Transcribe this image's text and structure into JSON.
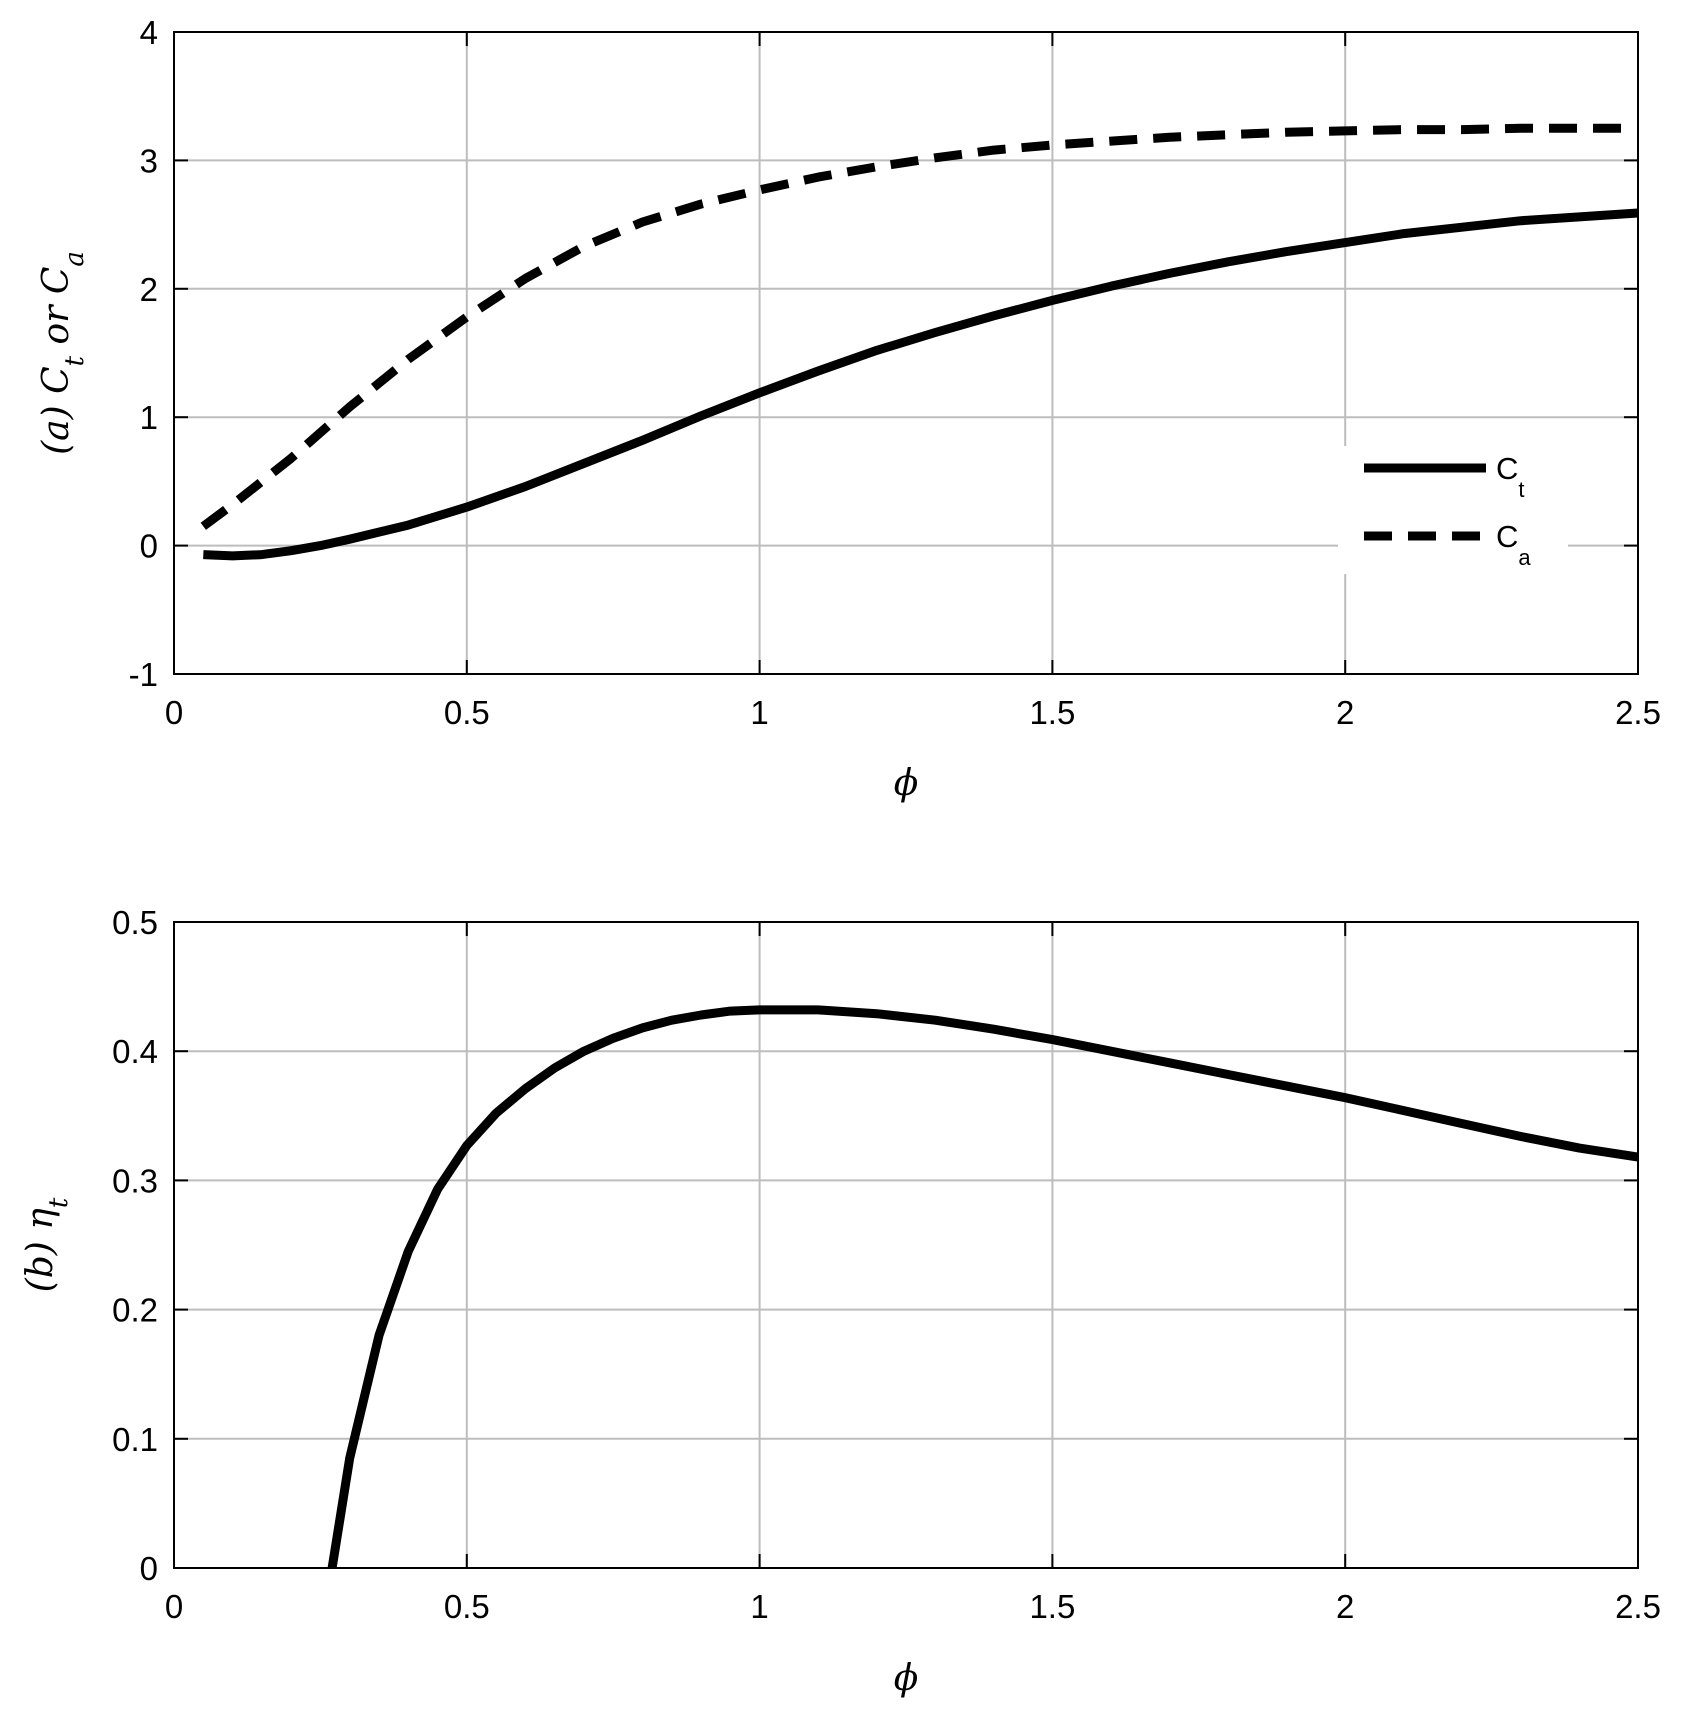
{
  "chart_data": [
    {
      "type": "line",
      "xlabel": "ϕ",
      "ylabel": {
        "prefix": "(a) ",
        "parts": [
          {
            "text": "C",
            "sub": "t"
          },
          {
            "text": " or "
          },
          {
            "text": "C",
            "sub": "a"
          }
        ]
      },
      "xlim": [
        0,
        2.5
      ],
      "ylim": [
        -1,
        4
      ],
      "xticks": [
        0,
        0.5,
        1,
        1.5,
        2,
        2.5
      ],
      "xtick_labels": [
        "0",
        "0.5",
        "1",
        "1.5",
        "2",
        "2.5"
      ],
      "yticks": [
        -1,
        0,
        1,
        2,
        3,
        4
      ],
      "ytick_labels": [
        "-1",
        "0",
        "1",
        "2",
        "3",
        "4"
      ],
      "grid": true,
      "legend": {
        "placement": "right",
        "entries": [
          {
            "text": "C",
            "sub": "t",
            "style": "solid"
          },
          {
            "text": "C",
            "sub": "a",
            "style": "dashed"
          }
        ]
      },
      "series": [
        {
          "style": "solid",
          "color": "#000000",
          "x": [
            0.05,
            0.1,
            0.15,
            0.2,
            0.25,
            0.3,
            0.4,
            0.5,
            0.6,
            0.7,
            0.8,
            0.9,
            1.0,
            1.1,
            1.2,
            1.3,
            1.4,
            1.5,
            1.6,
            1.7,
            1.8,
            1.9,
            2.0,
            2.1,
            2.2,
            2.3,
            2.4,
            2.5
          ],
          "y": [
            -0.07,
            -0.08,
            -0.07,
            -0.04,
            0.0,
            0.05,
            0.16,
            0.3,
            0.46,
            0.64,
            0.82,
            1.01,
            1.19,
            1.36,
            1.52,
            1.66,
            1.79,
            1.91,
            2.02,
            2.12,
            2.21,
            2.29,
            2.36,
            2.43,
            2.48,
            2.53,
            2.56,
            2.59
          ]
        },
        {
          "style": "dashed",
          "color": "#000000",
          "x": [
            0.05,
            0.1,
            0.2,
            0.3,
            0.4,
            0.5,
            0.6,
            0.7,
            0.8,
            0.9,
            1.0,
            1.1,
            1.2,
            1.3,
            1.4,
            1.5,
            1.6,
            1.7,
            1.8,
            1.9,
            2.0,
            2.1,
            2.2,
            2.3,
            2.4,
            2.5
          ],
          "y": [
            0.15,
            0.32,
            0.68,
            1.08,
            1.45,
            1.78,
            2.08,
            2.33,
            2.52,
            2.66,
            2.77,
            2.87,
            2.95,
            3.02,
            3.08,
            3.12,
            3.15,
            3.18,
            3.2,
            3.22,
            3.23,
            3.24,
            3.24,
            3.25,
            3.25,
            3.25
          ]
        }
      ]
    },
    {
      "type": "line",
      "xlabel": "ϕ",
      "ylabel": {
        "prefix": "(b) ",
        "parts": [
          {
            "text": "η",
            "sub": "t"
          }
        ]
      },
      "xlim": [
        0,
        2.5
      ],
      "ylim": [
        0,
        0.5
      ],
      "xticks": [
        0,
        0.5,
        1,
        1.5,
        2,
        2.5
      ],
      "xtick_labels": [
        "0",
        "0.5",
        "1",
        "1.5",
        "2",
        "2.5"
      ],
      "yticks": [
        0,
        0.1,
        0.2,
        0.3,
        0.4,
        0.5
      ],
      "ytick_labels": [
        "0",
        "0.1",
        "0.2",
        "0.3",
        "0.4",
        "0.5"
      ],
      "grid": true,
      "series": [
        {
          "style": "solid",
          "color": "#000000",
          "x": [
            0.27,
            0.3,
            0.35,
            0.4,
            0.45,
            0.5,
            0.55,
            0.6,
            0.65,
            0.7,
            0.75,
            0.8,
            0.85,
            0.9,
            0.95,
            1.0,
            1.05,
            1.1,
            1.2,
            1.3,
            1.4,
            1.5,
            1.6,
            1.7,
            1.8,
            1.9,
            2.0,
            2.1,
            2.2,
            2.3,
            2.4,
            2.5
          ],
          "y": [
            0.0,
            0.085,
            0.18,
            0.245,
            0.293,
            0.327,
            0.352,
            0.371,
            0.387,
            0.4,
            0.41,
            0.418,
            0.424,
            0.428,
            0.431,
            0.432,
            0.432,
            0.432,
            0.429,
            0.424,
            0.417,
            0.409,
            0.4,
            0.391,
            0.382,
            0.373,
            0.364,
            0.354,
            0.344,
            0.334,
            0.325,
            0.318
          ]
        }
      ]
    }
  ]
}
